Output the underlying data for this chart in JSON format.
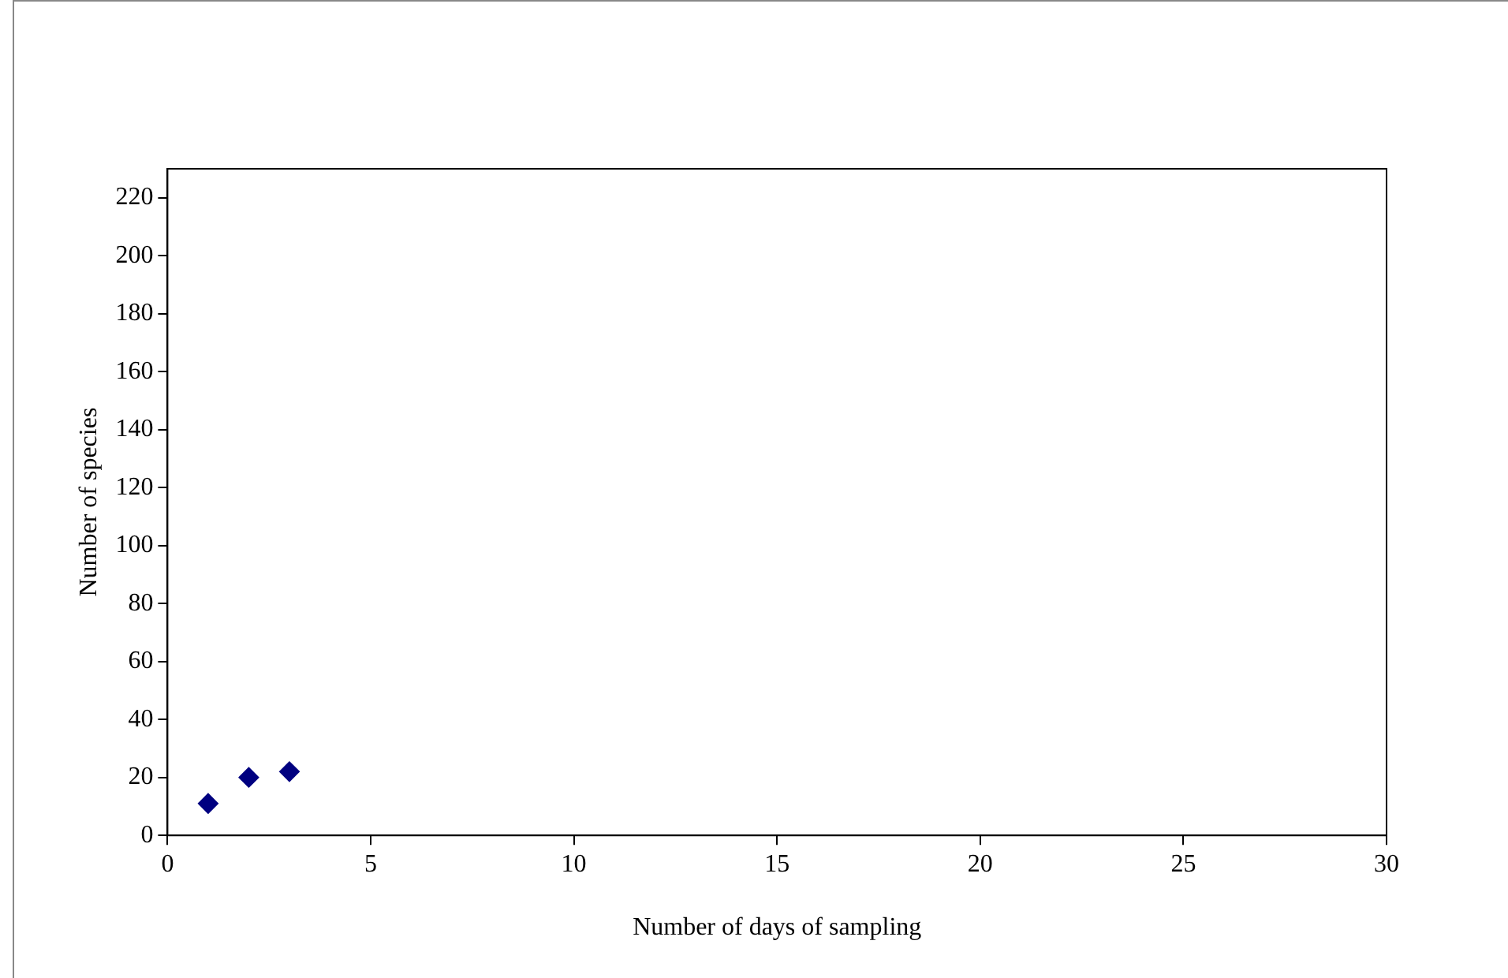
{
  "chart_data": {
    "type": "scatter",
    "xlabel": "Number of days of sampling",
    "ylabel": "Number of species",
    "x": [
      1,
      2,
      3
    ],
    "series": [
      {
        "color": "#000080",
        "values": [
          11,
          20,
          22
        ]
      }
    ],
    "xlim": [
      0,
      30
    ],
    "xticks": [
      0,
      5,
      10,
      15,
      20,
      25,
      30
    ],
    "ylim": [
      0,
      230
    ],
    "yticks": [
      0,
      20,
      40,
      60,
      80,
      100,
      120,
      140,
      160,
      180,
      200,
      220
    ],
    "marker": "diamond",
    "grid": false,
    "legend": false
  }
}
